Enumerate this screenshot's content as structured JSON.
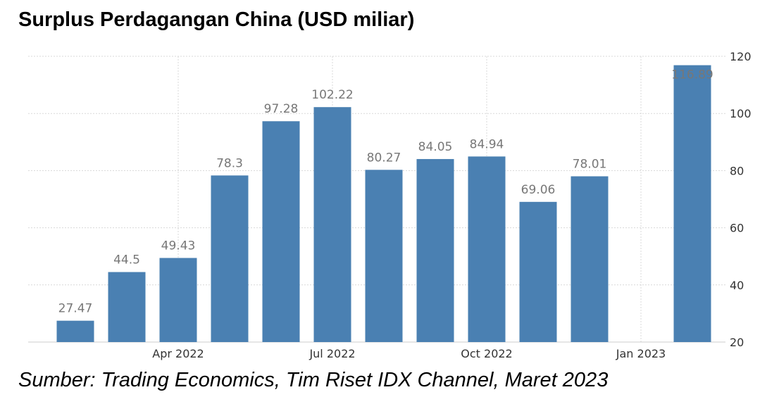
{
  "title": "Surplus Perdagangan China (USD miliar)",
  "source": "Sumber: Trading Economics, Tim Riset IDX Channel, Maret 2023",
  "colors": {
    "bar": "#4a80b2",
    "label": "#777777",
    "tick": "#333333",
    "grid": "#d8d8d8"
  },
  "chart_data": {
    "type": "bar",
    "title": "Surplus Perdagangan China (USD miliar)",
    "xlabel": "",
    "ylabel": "",
    "categories": [
      "Feb 2022",
      "Mar 2022",
      "Apr 2022",
      "May 2022",
      "Jun 2022",
      "Jul 2022",
      "Aug 2022",
      "Sep 2022",
      "Oct 2022",
      "Nov 2022",
      "Dec 2022",
      "Jan 2023",
      "Feb 2023"
    ],
    "values": [
      27.47,
      44.5,
      49.43,
      78.3,
      97.28,
      102.22,
      80.27,
      84.05,
      84.94,
      69.06,
      78.01,
      null,
      116.89
    ],
    "data_labels": [
      "27.47",
      "44.5",
      "49.43",
      "78.3",
      "97.28",
      "102.22",
      "80.27",
      "84.05",
      "84.94",
      "69.06",
      "78.01",
      "",
      "116.89"
    ],
    "x_tick_labels": [
      {
        "label": "Apr 2022",
        "category": "Apr 2022"
      },
      {
        "label": "Jul 2022",
        "category": "Jul 2022"
      },
      {
        "label": "Oct 2022",
        "category": "Oct 2022"
      },
      {
        "label": "Jan 2023",
        "category": "Jan 2023"
      }
    ],
    "y_ticks": [
      20,
      40,
      60,
      80,
      100,
      120
    ],
    "ylim": [
      20,
      120
    ],
    "y_axis_side": "right",
    "grid": true,
    "legend": "none"
  }
}
